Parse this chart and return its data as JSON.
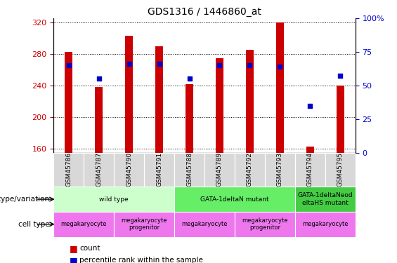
{
  "title": "GDS1316 / 1446860_at",
  "samples": [
    "GSM45786",
    "GSM45787",
    "GSM45790",
    "GSM45791",
    "GSM45788",
    "GSM45789",
    "GSM45792",
    "GSM45793",
    "GSM45794",
    "GSM45795"
  ],
  "bar_values": [
    283,
    238,
    303,
    290,
    242,
    275,
    285,
    320,
    163,
    240
  ],
  "dot_values": [
    65,
    55,
    66,
    66,
    55,
    65,
    65,
    64,
    35,
    57
  ],
  "ylim_left": [
    155,
    325
  ],
  "ylim_right": [
    0,
    100
  ],
  "yticks_left": [
    160,
    200,
    240,
    280,
    320
  ],
  "yticks_right": [
    0,
    25,
    50,
    75,
    100
  ],
  "bar_color": "#cc0000",
  "dot_color": "#0000cc",
  "genotype_groups": [
    {
      "label": "wild type",
      "start": 0,
      "end": 4,
      "color": "#ccffcc"
    },
    {
      "label": "GATA-1deltaN mutant",
      "start": 4,
      "end": 8,
      "color": "#66ee66"
    },
    {
      "label": "GATA-1deltaNeod\neltaHS mutant",
      "start": 8,
      "end": 10,
      "color": "#44cc44"
    }
  ],
  "cell_type_groups": [
    {
      "label": "megakaryocyte",
      "start": 0,
      "end": 2,
      "color": "#ee77ee"
    },
    {
      "label": "megakaryocyte\nprogenitor",
      "start": 2,
      "end": 4,
      "color": "#ee77ee"
    },
    {
      "label": "megakaryocyte",
      "start": 4,
      "end": 6,
      "color": "#ee77ee"
    },
    {
      "label": "megakaryocyte\nprogenitor",
      "start": 6,
      "end": 8,
      "color": "#ee77ee"
    },
    {
      "label": "megakaryocyte",
      "start": 8,
      "end": 10,
      "color": "#ee77ee"
    }
  ],
  "genotype_label": "genotype/variation",
  "cell_type_label": "cell type",
  "legend_count": "count",
  "legend_percentile": "percentile rank within the sample",
  "left_ytick_color": "#cc0000",
  "right_ytick_color": "#0000cc",
  "tick_label_bg": "#d8d8d8"
}
